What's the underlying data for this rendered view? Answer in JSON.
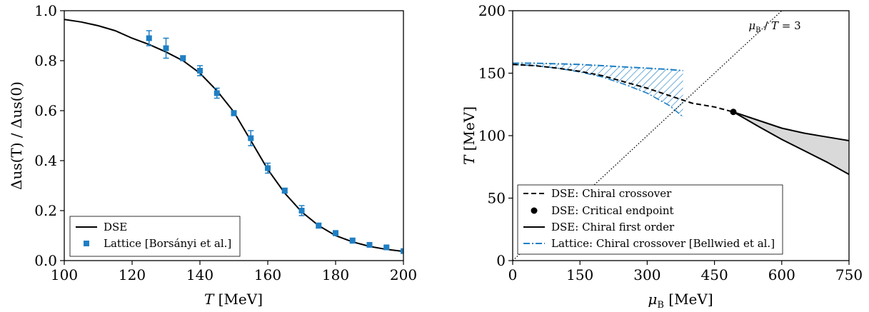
{
  "colors": {
    "dse": "#000000",
    "lattice": "#1f7fc4",
    "shade": "#d9d9d9"
  },
  "chart_data": [
    {
      "type": "scatter",
      "xlabel": {
        "symbol": "T",
        "unit": " [MeV]"
      },
      "ylabel": {
        "text": "Δus(T) / Δus(0)"
      },
      "xlim": [
        100,
        200
      ],
      "ylim": [
        0,
        1.0
      ],
      "xticks": [
        "100",
        "120",
        "140",
        "160",
        "180",
        "200"
      ],
      "yticks": [
        "0.0",
        "0.2",
        "0.4",
        "0.6",
        "0.8",
        "1.0"
      ],
      "legend_position": "lower-left",
      "series": [
        {
          "name": "DSE",
          "kind": "line",
          "x": [
            100,
            105,
            110,
            115,
            120,
            125,
            130,
            135,
            140,
            145,
            150,
            155,
            160,
            165,
            170,
            175,
            180,
            185,
            190,
            195,
            200
          ],
          "y": [
            0.965,
            0.955,
            0.94,
            0.92,
            0.89,
            0.865,
            0.835,
            0.8,
            0.75,
            0.68,
            0.595,
            0.48,
            0.365,
            0.27,
            0.195,
            0.14,
            0.1,
            0.075,
            0.057,
            0.045,
            0.037
          ]
        },
        {
          "name": "Lattice [Borsányi et al.]",
          "kind": "errorbar",
          "x": [
            125,
            130,
            135,
            140,
            145,
            150,
            155,
            160,
            165,
            170,
            175,
            180,
            185,
            190,
            195,
            200
          ],
          "y": [
            0.89,
            0.85,
            0.81,
            0.76,
            0.67,
            0.59,
            0.49,
            0.37,
            0.28,
            0.2,
            0.14,
            0.11,
            0.08,
            0.063,
            0.053,
            0.038
          ],
          "err": [
            0.03,
            0.04,
            0.01,
            0.02,
            0.02,
            0.01,
            0.03,
            0.02,
            0.01,
            0.02,
            0.01,
            0.01,
            0.01,
            0.005,
            0.005,
            0.005
          ]
        }
      ]
    },
    {
      "type": "line",
      "xlabel": {
        "symbol": "μ",
        "sub": "B",
        "unit": " [MeV]"
      },
      "ylabel": {
        "symbol": "T",
        "unit": " [MeV]"
      },
      "xlim": [
        0,
        750
      ],
      "ylim": [
        0,
        200
      ],
      "xticks": [
        "0",
        "150",
        "300",
        "450",
        "600",
        "750"
      ],
      "yticks": [
        "0",
        "50",
        "100",
        "150",
        "200"
      ],
      "annotation": {
        "sym": "μ",
        "sub": "B",
        "rest": " / ",
        "tsym": "T",
        "eq": " = 3"
      },
      "legend_position": "lower-left",
      "series": [
        {
          "name": "DSE: Chiral crossover",
          "kind": "dashed",
          "x": [
            0,
            50,
            100,
            150,
            200,
            250,
            300,
            350,
            400,
            450,
            492
          ],
          "y": [
            157,
            156,
            154,
            151.5,
            148,
            143,
            138,
            132,
            126,
            123,
            119
          ]
        },
        {
          "name": "DSE: Critical endpoint",
          "kind": "point",
          "x": [
            492
          ],
          "y": [
            119
          ]
        },
        {
          "name": "DSE: Chiral first order",
          "kind": "band",
          "x": [
            492,
            550,
            600,
            650,
            700,
            750
          ],
          "y_upper": [
            119,
            112,
            106,
            102,
            99,
            96
          ],
          "y_lower": [
            119,
            107,
            97,
            88,
            79,
            69
          ]
        },
        {
          "name": "Lattice: Chiral crossover [Bellwied et al.]",
          "kind": "dashdot-band",
          "x": [
            0,
            50,
            100,
            150,
            200,
            250,
            300,
            350,
            380
          ],
          "y_upper": [
            158,
            158,
            157.5,
            157,
            156,
            155,
            154,
            153,
            152
          ],
          "y_lower": [
            157,
            156,
            154,
            151,
            147,
            141,
            134,
            124,
            115
          ]
        },
        {
          "name": "",
          "kind": "dotted",
          "x": [
            0,
            615
          ],
          "y": [
            0,
            205
          ]
        }
      ]
    }
  ]
}
